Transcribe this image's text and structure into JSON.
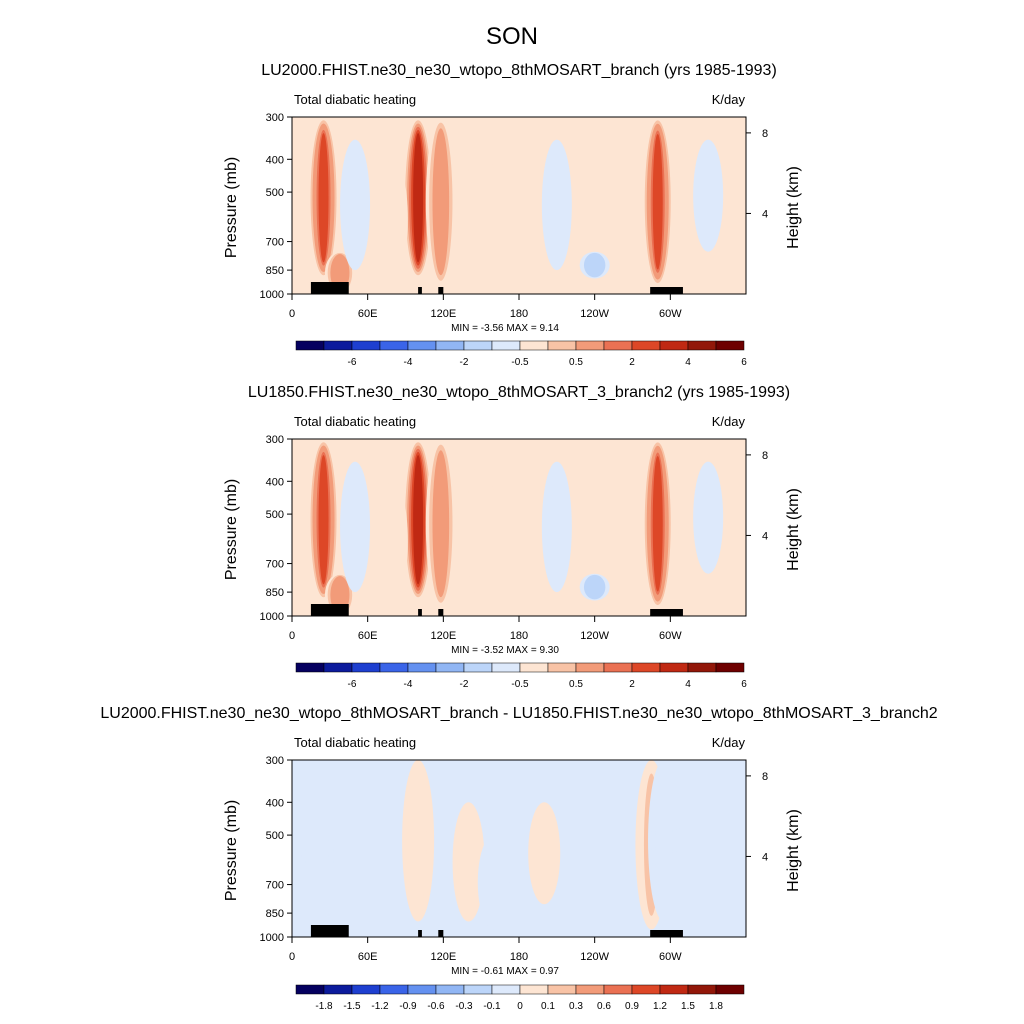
{
  "figure_title": "SON",
  "chart_data": [
    {
      "type": "heatmap",
      "title": "LU2000.FHIST.ne30_ne30_wtopo_8thMOSART_branch (yrs 1985-1993)",
      "left_string": "Total diabatic heating",
      "right_string": "K/day",
      "ylabel": "Pressure (mb)",
      "ylabel_right": "Height (km)",
      "x_ticks": [
        "0",
        "60E",
        "120E",
        "180",
        "120W",
        "60W"
      ],
      "y_ticks": [
        "300",
        "400",
        "500",
        "700",
        "850",
        "1000"
      ],
      "y_ticks_right": [
        "8",
        "4"
      ],
      "stats": "MIN =  -3.56  MAX =   9.14",
      "colorbar_ticks": [
        "-6",
        "-4",
        "-2",
        "-0.5",
        "0.5",
        "2",
        "4",
        "6"
      ],
      "features": [
        {
          "lon": 25,
          "p_top": 300,
          "p_bot": 900,
          "value": 6
        },
        {
          "lon": 38,
          "p_top": 750,
          "p_bot": 1000,
          "value": 4
        },
        {
          "lon": 50,
          "p_top": 350,
          "p_bot": 850,
          "value": -1
        },
        {
          "lon": 100,
          "p_top": 300,
          "p_bot": 900,
          "value": 7
        },
        {
          "lon": 118,
          "p_top": 300,
          "p_bot": 950,
          "value": 3
        },
        {
          "lon": 80,
          "p_top": 400,
          "p_bot": 900,
          "value": 0.6
        },
        {
          "lon": 150,
          "p_top": 350,
          "p_bot": 900,
          "value": 1
        },
        {
          "lon": 210,
          "p_top": 350,
          "p_bot": 850,
          "value": -0.8
        },
        {
          "lon": 240,
          "p_top": 750,
          "p_bot": 900,
          "value": -2
        },
        {
          "lon": 290,
          "p_top": 300,
          "p_bot": 950,
          "value": 6
        },
        {
          "lon": 330,
          "p_top": 350,
          "p_bot": 750,
          "value": -0.7
        }
      ]
    },
    {
      "type": "heatmap",
      "title": "LU1850.FHIST.ne30_ne30_wtopo_8thMOSART_3_branch2 (yrs 1985-1993)",
      "left_string": "Total diabatic heating",
      "right_string": "K/day",
      "ylabel": "Pressure (mb)",
      "ylabel_right": "Height (km)",
      "x_ticks": [
        "0",
        "60E",
        "120E",
        "180",
        "120W",
        "60W"
      ],
      "y_ticks": [
        "300",
        "400",
        "500",
        "700",
        "850",
        "1000"
      ],
      "y_ticks_right": [
        "8",
        "4"
      ],
      "stats": "MIN =  -3.52  MAX =   9.30",
      "colorbar_ticks": [
        "-6",
        "-4",
        "-2",
        "-0.5",
        "0.5",
        "2",
        "4",
        "6"
      ],
      "features": [
        {
          "lon": 25,
          "p_top": 300,
          "p_bot": 900,
          "value": 6
        },
        {
          "lon": 38,
          "p_top": 750,
          "p_bot": 1000,
          "value": 4
        },
        {
          "lon": 50,
          "p_top": 350,
          "p_bot": 850,
          "value": -1
        },
        {
          "lon": 100,
          "p_top": 300,
          "p_bot": 900,
          "value": 7
        },
        {
          "lon": 118,
          "p_top": 300,
          "p_bot": 950,
          "value": 3
        },
        {
          "lon": 80,
          "p_top": 400,
          "p_bot": 900,
          "value": 0.6
        },
        {
          "lon": 150,
          "p_top": 350,
          "p_bot": 900,
          "value": 1
        },
        {
          "lon": 210,
          "p_top": 350,
          "p_bot": 850,
          "value": -0.8
        },
        {
          "lon": 240,
          "p_top": 750,
          "p_bot": 900,
          "value": -2
        },
        {
          "lon": 290,
          "p_top": 300,
          "p_bot": 950,
          "value": 6
        },
        {
          "lon": 330,
          "p_top": 350,
          "p_bot": 750,
          "value": -0.7
        }
      ]
    },
    {
      "type": "heatmap",
      "title": "LU2000.FHIST.ne30_ne30_wtopo_8thMOSART_branch - LU1850.FHIST.ne30_ne30_wtopo_8thMOSART_3_branch2",
      "left_string": "Total diabatic heating",
      "right_string": "K/day",
      "ylabel": "Pressure (mb)",
      "ylabel_right": "Height (km)",
      "x_ticks": [
        "0",
        "60E",
        "120E",
        "180",
        "120W",
        "60W"
      ],
      "y_ticks": [
        "300",
        "400",
        "500",
        "700",
        "850",
        "1000"
      ],
      "y_ticks_right": [
        "8",
        "4"
      ],
      "stats": "MIN =  -0.61  MAX =   0.97",
      "colorbar_ticks": [
        "-1.8",
        "-1.5",
        "-1.2",
        "-0.9",
        "-0.6",
        "-0.3",
        "-0.1",
        "0",
        "0.1",
        "0.3",
        "0.6",
        "0.9",
        "1.2",
        "1.5",
        "1.8"
      ],
      "features": [
        {
          "lon": 20,
          "p_top": 350,
          "p_bot": 950,
          "value": -0.2
        },
        {
          "lon": 100,
          "p_top": 300,
          "p_bot": 900,
          "value": 0.25
        },
        {
          "lon": 140,
          "p_top": 400,
          "p_bot": 900,
          "value": 0.2
        },
        {
          "lon": 160,
          "p_top": 500,
          "p_bot": 950,
          "value": -0.15
        },
        {
          "lon": 200,
          "p_top": 400,
          "p_bot": 800,
          "value": 0.1
        },
        {
          "lon": 285,
          "p_top": 300,
          "p_bot": 950,
          "value": 0.6
        },
        {
          "lon": 295,
          "p_top": 300,
          "p_bot": 900,
          "value": -0.3
        }
      ]
    }
  ]
}
